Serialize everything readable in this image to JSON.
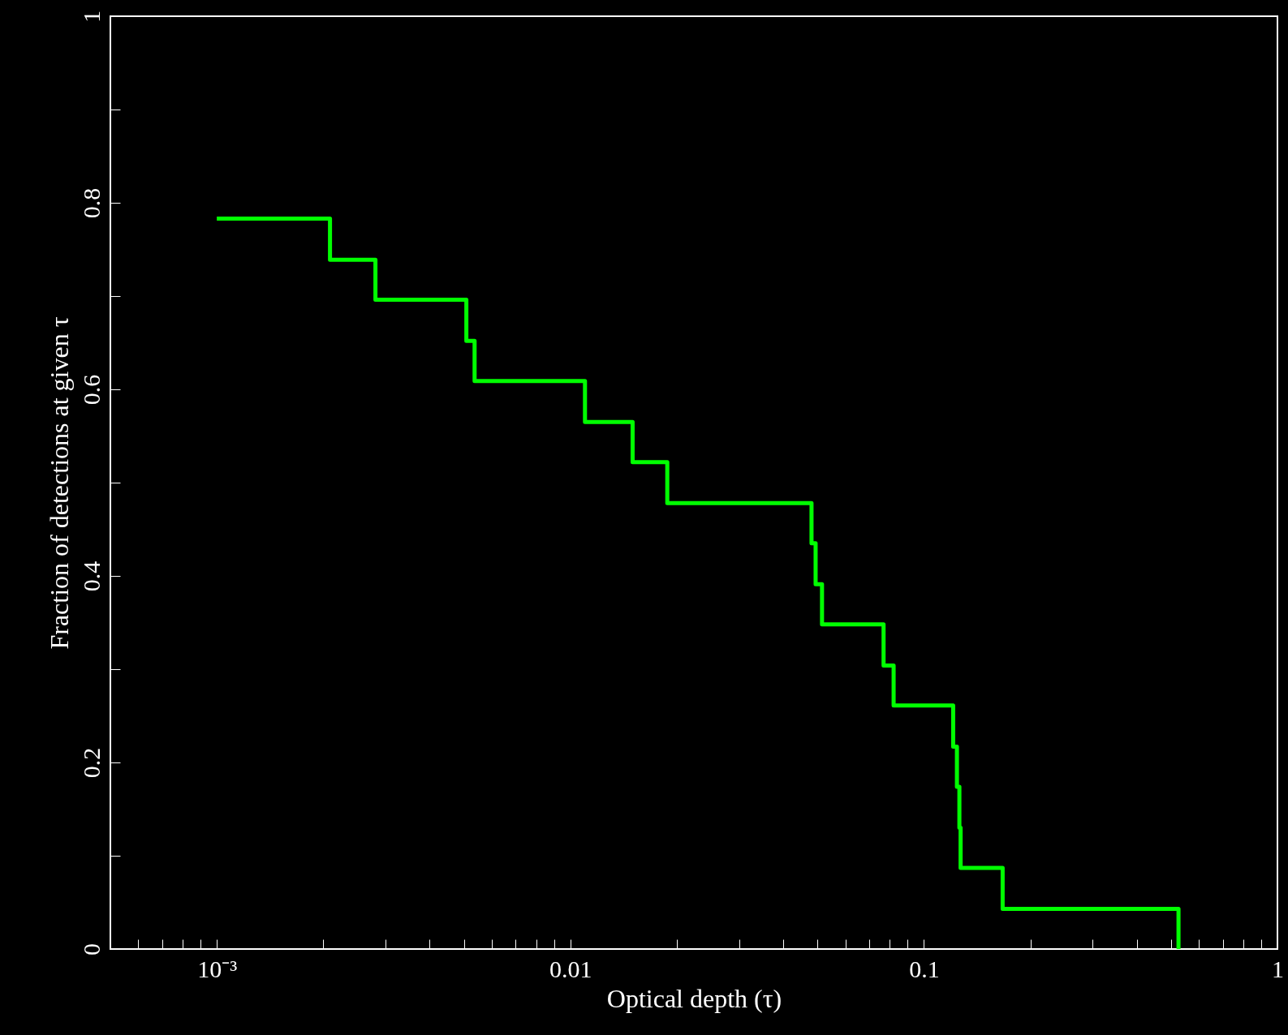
{
  "chart_data": {
    "type": "step",
    "xlabel": "Optical depth (τ)",
    "ylabel": "Fraction of detections at given τ",
    "log": "x",
    "x": [
      0.001,
      0.00209,
      0.00281,
      0.00508,
      0.00536,
      0.011,
      0.015,
      0.0188,
      0.0481,
      0.0494,
      0.0515,
      0.0769,
      0.0821,
      0.121,
      0.124,
      0.126,
      0.127,
      0.167,
      0.525
    ],
    "series": [
      {
        "color": "#00ff00",
        "values": [
          0.783,
          0.739,
          0.696,
          0.652,
          0.609,
          0.565,
          0.522,
          0.478,
          0.435,
          0.391,
          0.348,
          0.304,
          0.261,
          0.217,
          0.174,
          0.13,
          0.087,
          0.043,
          0
        ]
      }
    ],
    "xlim": [
      0.0005,
      1
    ],
    "xticks": [
      {
        "value": 0.0005,
        "label": null
      },
      {
        "value": 0.0006,
        "label": null
      },
      {
        "value": 0.0007,
        "label": null
      },
      {
        "value": 0.0008,
        "label": null
      },
      {
        "value": 0.0009,
        "label": null
      },
      {
        "value": 0.001,
        "label": "10⁻³"
      },
      {
        "value": 0.002,
        "label": null
      },
      {
        "value": 0.003,
        "label": null
      },
      {
        "value": 0.004,
        "label": null
      },
      {
        "value": 0.005,
        "label": null
      },
      {
        "value": 0.006,
        "label": null
      },
      {
        "value": 0.007,
        "label": null
      },
      {
        "value": 0.008,
        "label": null
      },
      {
        "value": 0.009,
        "label": null
      },
      0.01,
      {
        "value": 0.02,
        "label": null
      },
      {
        "value": 0.03,
        "label": null
      },
      {
        "value": 0.04,
        "label": null
      },
      {
        "value": 0.05,
        "label": null
      },
      {
        "value": 0.06,
        "label": null
      },
      {
        "value": 0.07,
        "label": null
      },
      {
        "value": 0.08,
        "label": null
      },
      {
        "value": 0.09,
        "label": null
      },
      0.1,
      {
        "value": 0.2,
        "label": null
      },
      {
        "value": 0.3,
        "label": null
      },
      {
        "value": 0.4,
        "label": null
      },
      {
        "value": 0.5,
        "label": null
      },
      {
        "value": 0.6,
        "label": null
      },
      {
        "value": 0.7,
        "label": null
      },
      {
        "value": 0.8,
        "label": null
      },
      {
        "value": 0.9,
        "label": null
      },
      1
    ],
    "ylim": [
      0,
      1
    ],
    "yticks": [
      0,
      {
        "value": 0.1,
        "label": null
      },
      0.2,
      {
        "value": 0.3,
        "label": null
      },
      0.4,
      {
        "value": 0.5,
        "label": null
      },
      0.6,
      {
        "value": 0.7,
        "label": null
      },
      0.8,
      {
        "value": 0.9,
        "label": null
      },
      1
    ],
    "grid": false,
    "line_style": "solid",
    "marker": "none"
  }
}
